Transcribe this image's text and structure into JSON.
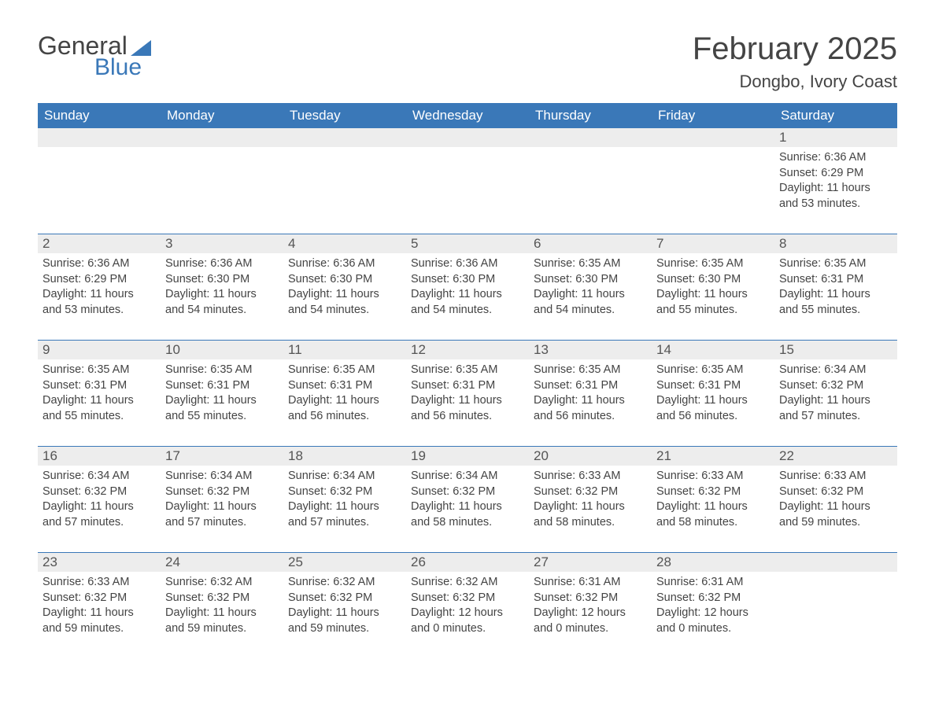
{
  "brand": {
    "word1": "General",
    "word2": "Blue",
    "color_primary": "#3a78b8",
    "color_text": "#444444"
  },
  "title": "February 2025",
  "location": "Dongbo, Ivory Coast",
  "colors": {
    "header_bg": "#3a78b8",
    "header_text": "#ffffff",
    "daynum_bg": "#ededed",
    "body_text": "#444444",
    "rule": "#3a78b8",
    "page_bg": "#ffffff"
  },
  "fonts": {
    "title_size_pt": 40,
    "location_size_pt": 22,
    "header_size_pt": 17,
    "cell_size_pt": 14.5
  },
  "day_labels": [
    "Sunday",
    "Monday",
    "Tuesday",
    "Wednesday",
    "Thursday",
    "Friday",
    "Saturday"
  ],
  "weeks": [
    [
      null,
      null,
      null,
      null,
      null,
      null,
      {
        "n": "1",
        "sr": "Sunrise: 6:36 AM",
        "ss": "Sunset: 6:29 PM",
        "d1": "Daylight: 11 hours",
        "d2": "and 53 minutes."
      }
    ],
    [
      {
        "n": "2",
        "sr": "Sunrise: 6:36 AM",
        "ss": "Sunset: 6:29 PM",
        "d1": "Daylight: 11 hours",
        "d2": "and 53 minutes."
      },
      {
        "n": "3",
        "sr": "Sunrise: 6:36 AM",
        "ss": "Sunset: 6:30 PM",
        "d1": "Daylight: 11 hours",
        "d2": "and 54 minutes."
      },
      {
        "n": "4",
        "sr": "Sunrise: 6:36 AM",
        "ss": "Sunset: 6:30 PM",
        "d1": "Daylight: 11 hours",
        "d2": "and 54 minutes."
      },
      {
        "n": "5",
        "sr": "Sunrise: 6:36 AM",
        "ss": "Sunset: 6:30 PM",
        "d1": "Daylight: 11 hours",
        "d2": "and 54 minutes."
      },
      {
        "n": "6",
        "sr": "Sunrise: 6:35 AM",
        "ss": "Sunset: 6:30 PM",
        "d1": "Daylight: 11 hours",
        "d2": "and 54 minutes."
      },
      {
        "n": "7",
        "sr": "Sunrise: 6:35 AM",
        "ss": "Sunset: 6:30 PM",
        "d1": "Daylight: 11 hours",
        "d2": "and 55 minutes."
      },
      {
        "n": "8",
        "sr": "Sunrise: 6:35 AM",
        "ss": "Sunset: 6:31 PM",
        "d1": "Daylight: 11 hours",
        "d2": "and 55 minutes."
      }
    ],
    [
      {
        "n": "9",
        "sr": "Sunrise: 6:35 AM",
        "ss": "Sunset: 6:31 PM",
        "d1": "Daylight: 11 hours",
        "d2": "and 55 minutes."
      },
      {
        "n": "10",
        "sr": "Sunrise: 6:35 AM",
        "ss": "Sunset: 6:31 PM",
        "d1": "Daylight: 11 hours",
        "d2": "and 55 minutes."
      },
      {
        "n": "11",
        "sr": "Sunrise: 6:35 AM",
        "ss": "Sunset: 6:31 PM",
        "d1": "Daylight: 11 hours",
        "d2": "and 56 minutes."
      },
      {
        "n": "12",
        "sr": "Sunrise: 6:35 AM",
        "ss": "Sunset: 6:31 PM",
        "d1": "Daylight: 11 hours",
        "d2": "and 56 minutes."
      },
      {
        "n": "13",
        "sr": "Sunrise: 6:35 AM",
        "ss": "Sunset: 6:31 PM",
        "d1": "Daylight: 11 hours",
        "d2": "and 56 minutes."
      },
      {
        "n": "14",
        "sr": "Sunrise: 6:35 AM",
        "ss": "Sunset: 6:31 PM",
        "d1": "Daylight: 11 hours",
        "d2": "and 56 minutes."
      },
      {
        "n": "15",
        "sr": "Sunrise: 6:34 AM",
        "ss": "Sunset: 6:32 PM",
        "d1": "Daylight: 11 hours",
        "d2": "and 57 minutes."
      }
    ],
    [
      {
        "n": "16",
        "sr": "Sunrise: 6:34 AM",
        "ss": "Sunset: 6:32 PM",
        "d1": "Daylight: 11 hours",
        "d2": "and 57 minutes."
      },
      {
        "n": "17",
        "sr": "Sunrise: 6:34 AM",
        "ss": "Sunset: 6:32 PM",
        "d1": "Daylight: 11 hours",
        "d2": "and 57 minutes."
      },
      {
        "n": "18",
        "sr": "Sunrise: 6:34 AM",
        "ss": "Sunset: 6:32 PM",
        "d1": "Daylight: 11 hours",
        "d2": "and 57 minutes."
      },
      {
        "n": "19",
        "sr": "Sunrise: 6:34 AM",
        "ss": "Sunset: 6:32 PM",
        "d1": "Daylight: 11 hours",
        "d2": "and 58 minutes."
      },
      {
        "n": "20",
        "sr": "Sunrise: 6:33 AM",
        "ss": "Sunset: 6:32 PM",
        "d1": "Daylight: 11 hours",
        "d2": "and 58 minutes."
      },
      {
        "n": "21",
        "sr": "Sunrise: 6:33 AM",
        "ss": "Sunset: 6:32 PM",
        "d1": "Daylight: 11 hours",
        "d2": "and 58 minutes."
      },
      {
        "n": "22",
        "sr": "Sunrise: 6:33 AM",
        "ss": "Sunset: 6:32 PM",
        "d1": "Daylight: 11 hours",
        "d2": "and 59 minutes."
      }
    ],
    [
      {
        "n": "23",
        "sr": "Sunrise: 6:33 AM",
        "ss": "Sunset: 6:32 PM",
        "d1": "Daylight: 11 hours",
        "d2": "and 59 minutes."
      },
      {
        "n": "24",
        "sr": "Sunrise: 6:32 AM",
        "ss": "Sunset: 6:32 PM",
        "d1": "Daylight: 11 hours",
        "d2": "and 59 minutes."
      },
      {
        "n": "25",
        "sr": "Sunrise: 6:32 AM",
        "ss": "Sunset: 6:32 PM",
        "d1": "Daylight: 11 hours",
        "d2": "and 59 minutes."
      },
      {
        "n": "26",
        "sr": "Sunrise: 6:32 AM",
        "ss": "Sunset: 6:32 PM",
        "d1": "Daylight: 12 hours",
        "d2": "and 0 minutes."
      },
      {
        "n": "27",
        "sr": "Sunrise: 6:31 AM",
        "ss": "Sunset: 6:32 PM",
        "d1": "Daylight: 12 hours",
        "d2": "and 0 minutes."
      },
      {
        "n": "28",
        "sr": "Sunrise: 6:31 AM",
        "ss": "Sunset: 6:32 PM",
        "d1": "Daylight: 12 hours",
        "d2": "and 0 minutes."
      },
      null
    ]
  ]
}
